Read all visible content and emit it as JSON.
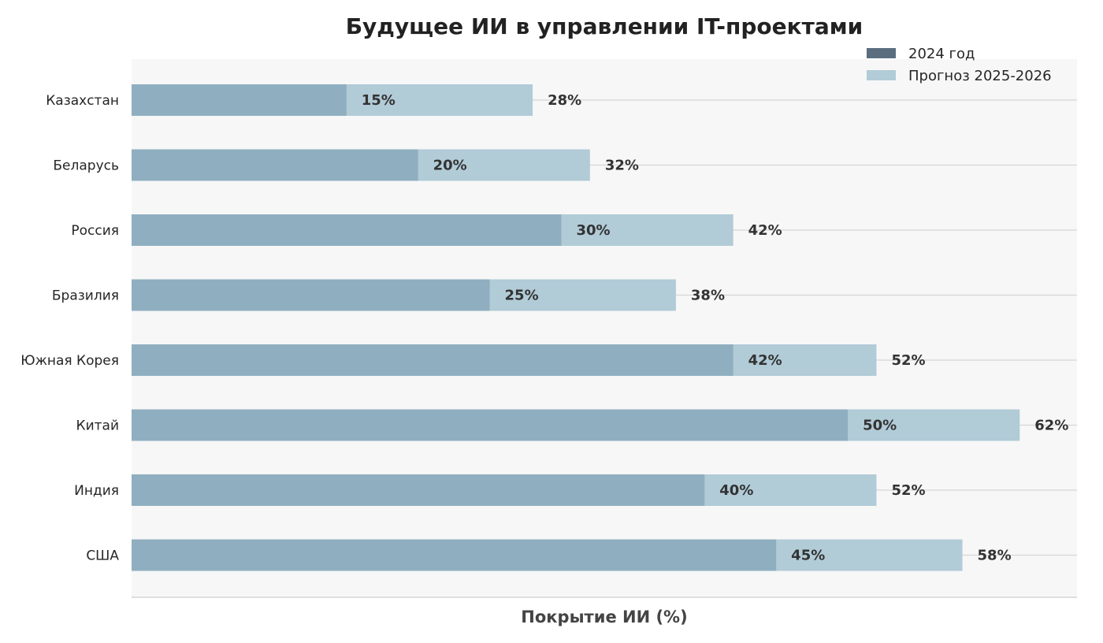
{
  "chart_data": {
    "type": "bar",
    "orientation": "horizontal",
    "stacked": "overlay",
    "title": "Будущее ИИ в управлении IT-проектами",
    "xlabel": "Покрытие ИИ (%)",
    "ylabel": "",
    "categories": [
      "Казахстан",
      "Беларусь",
      "Россия",
      "Бразилия",
      "Южная Корея",
      "Китай",
      "Индия",
      "США"
    ],
    "series": [
      {
        "name": "2024 год",
        "values": [
          15,
          20,
          30,
          25,
          42,
          50,
          40,
          45
        ],
        "color": "#8fafc0",
        "legend_color": "#5a6e80"
      },
      {
        "name": "Прогноз 2025-2026",
        "values": [
          28,
          32,
          42,
          38,
          52,
          62,
          52,
          58
        ],
        "color": "#b1cbd7",
        "legend_color": "#b1cbd7"
      }
    ],
    "value_labels": {
      "2024 год": [
        "15%",
        "20%",
        "30%",
        "25%",
        "42%",
        "50%",
        "40%",
        "45%"
      ],
      "Прогноз 2025-2026": [
        "28%",
        "32%",
        "42%",
        "38%",
        "52%",
        "62%",
        "52%",
        "58%"
      ]
    },
    "xlim": [
      0,
      66
    ],
    "x_ticks_visible": false,
    "grid": "horizontal",
    "legend_position": "top-right",
    "background_color": "#f7f7f7"
  }
}
